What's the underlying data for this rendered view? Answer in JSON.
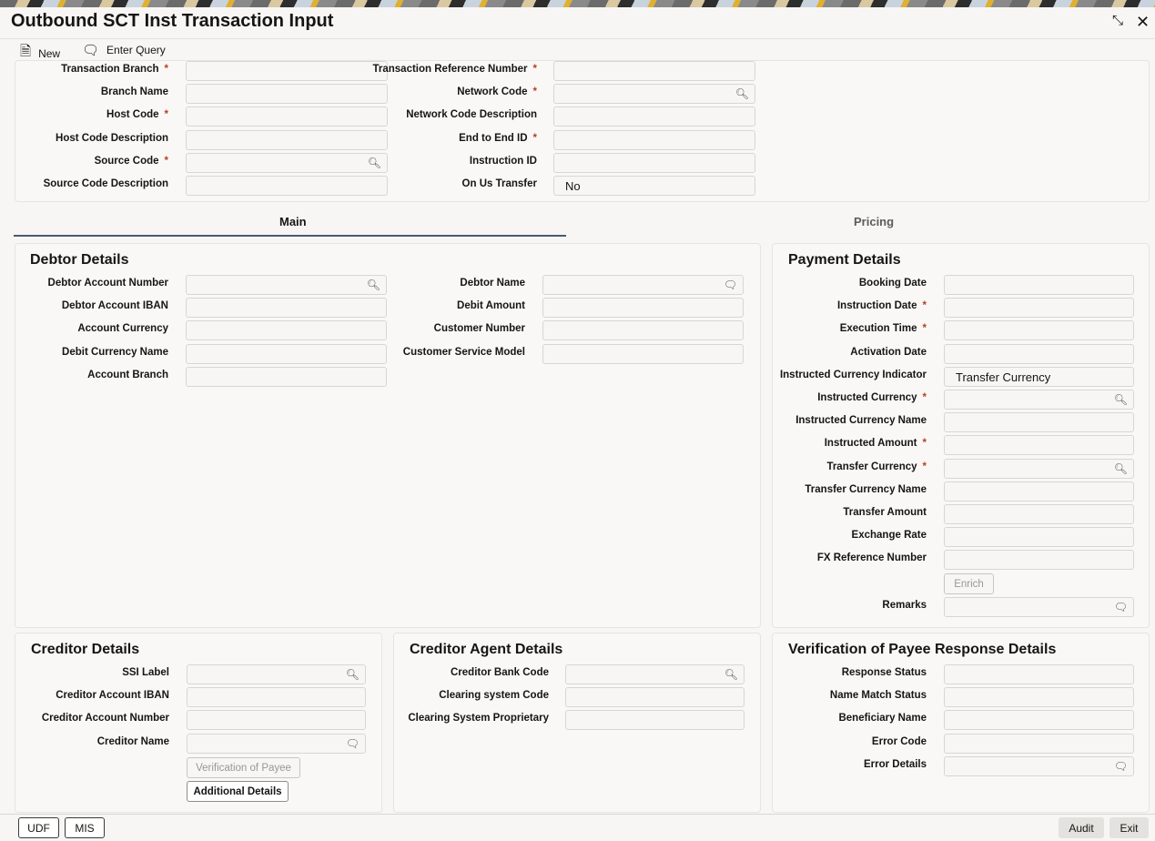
{
  "window": {
    "title": "Outbound SCT Inst Transaction Input",
    "minimize_icon": "collapse-icon",
    "close_icon": "close-icon"
  },
  "toolbar": {
    "new_label": "New",
    "enter_query_label": "Enter Query"
  },
  "header_left": [
    {
      "label": "Transaction Branch",
      "required": true,
      "value": ""
    },
    {
      "label": "Branch Name",
      "required": false,
      "value": ""
    },
    {
      "label": "Host Code",
      "required": true,
      "value": ""
    },
    {
      "label": "Host Code Description",
      "required": false,
      "value": ""
    },
    {
      "label": "Source Code",
      "required": true,
      "value": "",
      "icon": "search"
    },
    {
      "label": "Source Code Description",
      "required": false,
      "value": ""
    }
  ],
  "header_right": [
    {
      "label": "Transaction Reference Number",
      "required": true,
      "value": ""
    },
    {
      "label": "Network Code",
      "required": true,
      "value": "",
      "icon": "search"
    },
    {
      "label": "Network Code Description",
      "required": false,
      "value": ""
    },
    {
      "label": "End to End ID",
      "required": true,
      "value": ""
    },
    {
      "label": "Instruction ID",
      "required": false,
      "value": ""
    },
    {
      "label": "On Us Transfer",
      "required": false,
      "value": "No"
    }
  ],
  "tabs": [
    {
      "label": "Main",
      "active": true
    },
    {
      "label": "Pricing",
      "active": false
    }
  ],
  "debtor": {
    "title": "Debtor Details",
    "left": [
      {
        "label": "Debtor Account Number",
        "value": "",
        "icon": "search"
      },
      {
        "label": "Debtor Account IBAN",
        "value": ""
      },
      {
        "label": "Account Currency",
        "value": ""
      },
      {
        "label": "Debit Currency Name",
        "value": ""
      },
      {
        "label": "Account Branch",
        "value": ""
      }
    ],
    "right": [
      {
        "label": "Debtor Name",
        "value": "",
        "icon": "comment"
      },
      {
        "label": "Debit Amount",
        "value": ""
      },
      {
        "label": "Customer Number",
        "value": ""
      },
      {
        "label": "Customer Service Model",
        "value": ""
      }
    ]
  },
  "payment": {
    "title": "Payment Details",
    "fields": [
      {
        "label": "Booking Date",
        "value": ""
      },
      {
        "label": "Instruction Date",
        "required": true,
        "value": ""
      },
      {
        "label": "Execution Time",
        "required": true,
        "value": ""
      },
      {
        "label": "Activation Date",
        "value": ""
      },
      {
        "label": "Instructed Currency Indicator",
        "value": "Transfer Currency"
      },
      {
        "label": "Instructed Currency",
        "required": true,
        "value": "",
        "icon": "search"
      },
      {
        "label": "Instructed Currency Name",
        "value": ""
      },
      {
        "label": "Instructed Amount",
        "required": true,
        "value": ""
      },
      {
        "label": "Transfer Currency",
        "required": true,
        "value": "",
        "icon": "search"
      },
      {
        "label": "Transfer Currency Name",
        "value": ""
      },
      {
        "label": "Transfer Amount",
        "value": ""
      },
      {
        "label": "Exchange Rate",
        "value": ""
      },
      {
        "label": "FX Reference Number",
        "value": ""
      }
    ],
    "enrich_label": "Enrich",
    "remarks": {
      "label": "Remarks",
      "value": "",
      "icon": "comment"
    }
  },
  "creditor": {
    "title": "Creditor Details",
    "fields": [
      {
        "label": "SSI Label",
        "value": "",
        "icon": "search"
      },
      {
        "label": "Creditor Account IBAN",
        "value": ""
      },
      {
        "label": "Creditor Account Number",
        "value": ""
      },
      {
        "label": "Creditor Name",
        "value": "",
        "icon": "comment"
      }
    ],
    "verification_button": "Verification of Payee",
    "additional_button": "Additional Details"
  },
  "creditor_agent": {
    "title": "Creditor Agent Details",
    "fields": [
      {
        "label": "Creditor Bank Code",
        "value": "",
        "icon": "search"
      },
      {
        "label": "Clearing system Code",
        "value": ""
      },
      {
        "label": "Clearing System Proprietary",
        "value": ""
      }
    ]
  },
  "vop": {
    "title": "Verification of Payee Response Details",
    "fields": [
      {
        "label": "Response Status",
        "value": ""
      },
      {
        "label": "Name Match Status",
        "value": ""
      },
      {
        "label": "Beneficiary Name",
        "value": ""
      },
      {
        "label": "Error Code",
        "value": ""
      },
      {
        "label": "Error Details",
        "value": "",
        "icon": "comment"
      }
    ]
  },
  "footer": {
    "udf": "UDF",
    "mis": "MIS",
    "audit": "Audit",
    "exit": "Exit"
  }
}
